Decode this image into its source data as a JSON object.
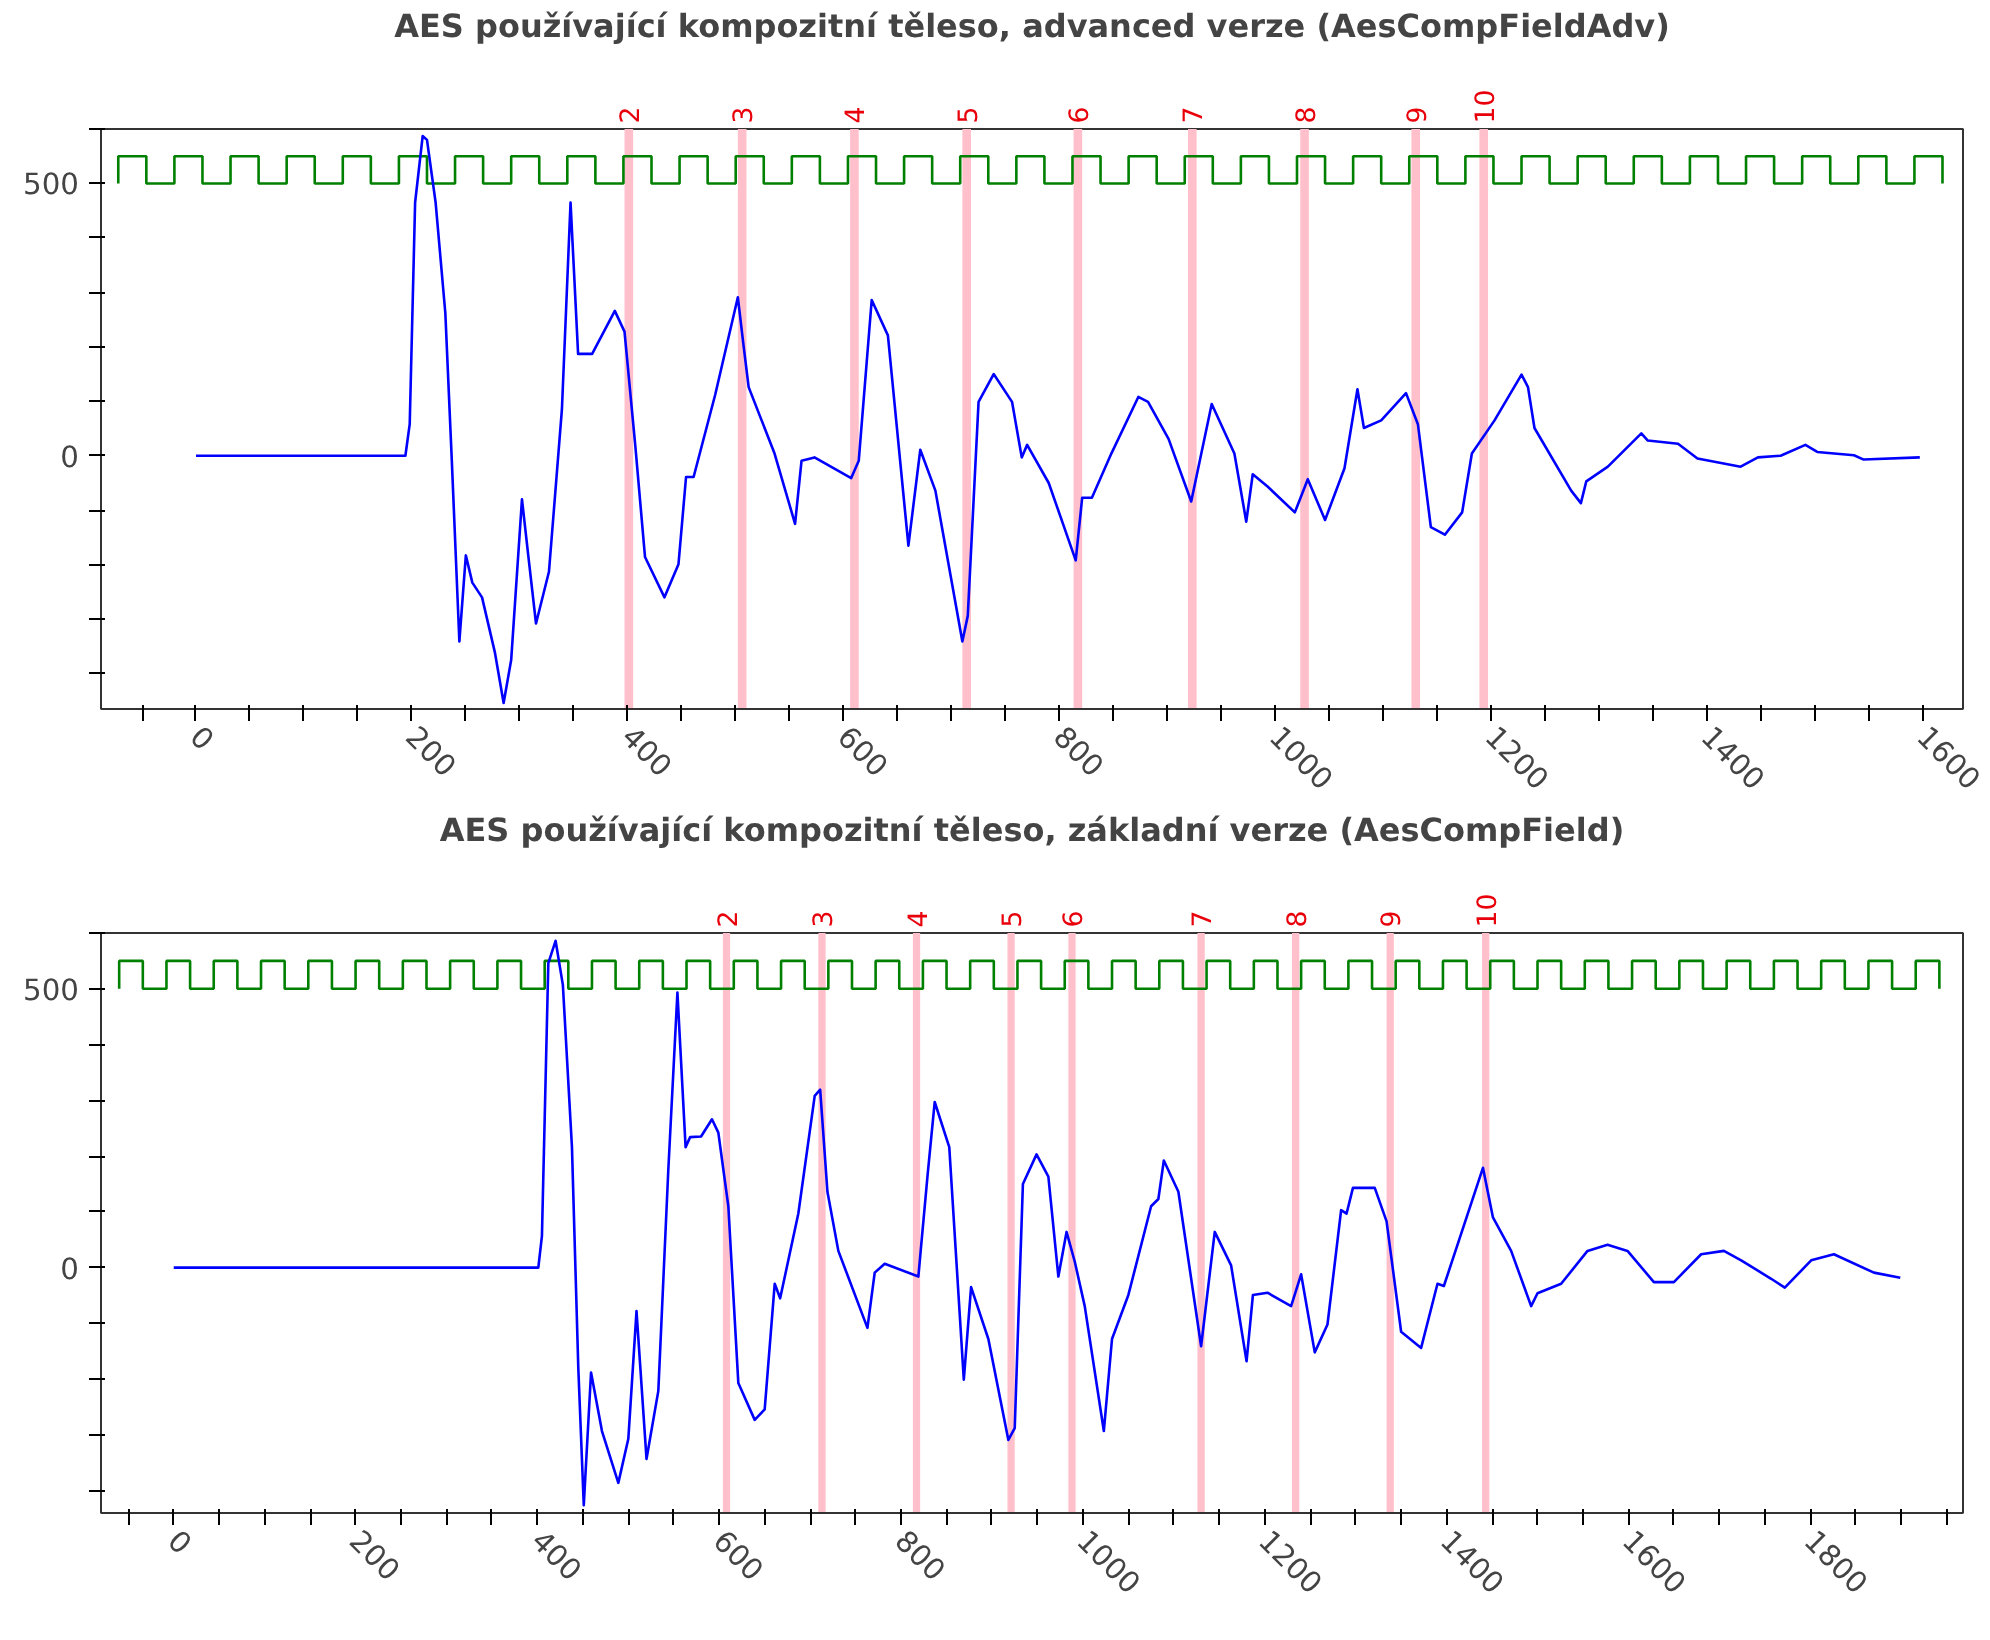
{
  "chart_data": [
    {
      "type": "line",
      "title": "AES používající kompozitní těleso, advanced verze (AesCompFieldAdv)",
      "xlim": [
        -88,
        1637
      ],
      "ylim": [
        -465,
        600
      ],
      "xticks": [
        {
          "value": -50,
          "label": null
        },
        0,
        {
          "value": 50,
          "label": null
        },
        {
          "value": 100,
          "label": null
        },
        {
          "value": 150,
          "label": null
        },
        200,
        {
          "value": 250,
          "label": null
        },
        {
          "value": 300,
          "label": null
        },
        {
          "value": 350,
          "label": null
        },
        400,
        {
          "value": 450,
          "label": null
        },
        {
          "value": 500,
          "label": null
        },
        {
          "value": 550,
          "label": null
        },
        600,
        {
          "value": 650,
          "label": null
        },
        {
          "value": 700,
          "label": null
        },
        {
          "value": 750,
          "label": null
        },
        800,
        {
          "value": 850,
          "label": null
        },
        {
          "value": 900,
          "label": null
        },
        {
          "value": 950,
          "label": null
        },
        1000,
        {
          "value": 1050,
          "label": null
        },
        {
          "value": 1100,
          "label": null
        },
        {
          "value": 1150,
          "label": null
        },
        1200,
        {
          "value": 1250,
          "label": null
        },
        {
          "value": 1300,
          "label": null
        },
        {
          "value": 1350,
          "label": null
        },
        1400,
        {
          "value": 1450,
          "label": null
        },
        {
          "value": 1500,
          "label": null
        },
        {
          "value": 1550,
          "label": null
        },
        1600
      ],
      "yticks": [
        {
          "value": -400,
          "label": null
        },
        {
          "value": -300,
          "label": null
        },
        {
          "value": -200,
          "label": null
        },
        {
          "value": -100,
          "label": null
        },
        0,
        {
          "value": 100,
          "label": null
        },
        {
          "value": 200,
          "label": null
        },
        {
          "value": 300,
          "label": null
        },
        {
          "value": 400,
          "label": null
        },
        500,
        {
          "value": 600,
          "label": null
        }
      ],
      "bands": [
        {
          "axis": "x",
          "from": 397,
          "to": 405,
          "label": "2",
          "color": "#ffc0cb"
        },
        {
          "axis": "x",
          "from": 502,
          "to": 510,
          "label": "3",
          "color": "#ffc0cb"
        },
        {
          "axis": "x",
          "from": 606,
          "to": 614,
          "label": "4",
          "color": "#ffc0cb"
        },
        {
          "axis": "x",
          "from": 710,
          "to": 718,
          "label": "5",
          "color": "#ffc0cb"
        },
        {
          "axis": "x",
          "from": 813,
          "to": 821,
          "label": "6",
          "color": "#ffc0cb"
        },
        {
          "axis": "x",
          "from": 919,
          "to": 927,
          "label": "7",
          "color": "#ffc0cb"
        },
        {
          "axis": "x",
          "from": 1023,
          "to": 1031,
          "label": "8",
          "color": "#ffc0cb"
        },
        {
          "axis": "x",
          "from": 1126,
          "to": 1134,
          "label": "9",
          "color": "#ffc0cb"
        },
        {
          "axis": "x",
          "from": 1189,
          "to": 1197,
          "label": "10",
          "color": "#ffc0cb"
        }
      ],
      "series": [
        {
          "type": "step",
          "color": "#008000",
          "x": [
            -72,
            -72,
            -46,
            -20,
            6,
            32,
            58,
            84,
            110,
            136,
            162,
            188,
            214,
            240,
            266,
            292,
            318,
            344,
            370,
            396,
            422,
            448,
            474,
            500,
            526,
            552,
            578,
            604,
            630,
            656,
            682,
            708,
            734,
            760,
            786,
            812,
            838,
            864,
            890,
            916,
            942,
            968,
            994,
            1020,
            1046,
            1072,
            1098,
            1124,
            1150,
            1176,
            1202,
            1228,
            1254,
            1280,
            1306,
            1332,
            1358,
            1384,
            1410,
            1436,
            1462,
            1488,
            1514,
            1540,
            1566,
            1592,
            1618
          ],
          "values": [
            500,
            550,
            500,
            550,
            500,
            550,
            500,
            550,
            500,
            550,
            500,
            550,
            500,
            550,
            500,
            550,
            500,
            550,
            500,
            550,
            500,
            550,
            500,
            550,
            500,
            550,
            500,
            550,
            500,
            550,
            500,
            550,
            500,
            550,
            500,
            550,
            500,
            550,
            500,
            550,
            500,
            550,
            500,
            550,
            500,
            550,
            500,
            550,
            500,
            550,
            500,
            550,
            500,
            550,
            500,
            550,
            500,
            550,
            500,
            550,
            500,
            550,
            500,
            550,
            500,
            550,
            500
          ]
        },
        {
          "color": "#0000ff",
          "x": [
            0,
            194,
            198,
            203,
            210,
            214,
            222,
            231,
            237,
            244,
            250,
            256,
            265,
            277,
            285,
            292,
            302,
            308,
            315,
            327,
            339,
            347,
            354,
            367,
            388,
            397,
            407,
            416,
            434,
            447,
            454,
            461,
            481,
            502,
            507,
            512,
            536,
            555,
            561,
            573,
            607,
            614,
            626,
            641,
            660,
            671,
            685,
            710,
            715,
            725,
            739,
            756,
            765,
            770,
            790,
            815,
            821,
            830,
            848,
            873,
            882,
            901,
            922,
            941,
            962,
            973,
            979,
            993,
            1018,
            1030,
            1046,
            1064,
            1076,
            1082,
            1098,
            1121,
            1132,
            1144,
            1157,
            1173,
            1182,
            1203,
            1228,
            1234,
            1240,
            1274,
            1283,
            1288,
            1308,
            1339,
            1345,
            1373,
            1391,
            1431,
            1447,
            1468,
            1491,
            1502,
            1536,
            1545,
            1597
          ],
          "values": [
            0,
            0,
            58,
            465,
            587,
            580,
            465,
            262,
            -9,
            -341,
            -183,
            -233,
            -260,
            -362,
            -454,
            -375,
            -80,
            -186,
            -308,
            -213,
            85,
            465,
            187,
            187,
            266,
            228,
            18,
            -186,
            -260,
            -199,
            -39,
            -39,
            112,
            291,
            207,
            126,
            4,
            -125,
            -9,
            -3,
            -41,
            -9,
            286,
            221,
            -165,
            11,
            -64,
            -341,
            -294,
            99,
            150,
            99,
            -3,
            20,
            -50,
            -192,
            -77,
            -77,
            4,
            108,
            99,
            31,
            -84,
            95,
            4,
            -121,
            -34,
            -57,
            -104,
            -43,
            -118,
            -23,
            122,
            51,
            65,
            115,
            58,
            -131,
            -145,
            -104,
            4,
            65,
            149,
            126,
            51,
            -64,
            -87,
            -47,
            -20,
            41,
            28,
            22,
            -5,
            -20,
            -3,
            0,
            20,
            7,
            1,
            -7,
            -3
          ]
        }
      ]
    },
    {
      "type": "line",
      "title": "AES používající kompozitní těleso, základní verze (AesCompField)",
      "xlim": [
        -80,
        1968
      ],
      "ylim": [
        -440,
        600
      ],
      "xticks": [
        {
          "value": -50,
          "label": null
        },
        0,
        {
          "value": 50,
          "label": null
        },
        {
          "value": 100,
          "label": null
        },
        {
          "value": 150,
          "label": null
        },
        200,
        {
          "value": 250,
          "label": null
        },
        {
          "value": 300,
          "label": null
        },
        {
          "value": 350,
          "label": null
        },
        400,
        {
          "value": 450,
          "label": null
        },
        {
          "value": 500,
          "label": null
        },
        {
          "value": 550,
          "label": null
        },
        600,
        {
          "value": 650,
          "label": null
        },
        {
          "value": 700,
          "label": null
        },
        {
          "value": 750,
          "label": null
        },
        800,
        {
          "value": 850,
          "label": null
        },
        {
          "value": 900,
          "label": null
        },
        {
          "value": 950,
          "label": null
        },
        1000,
        {
          "value": 1050,
          "label": null
        },
        {
          "value": 1100,
          "label": null
        },
        {
          "value": 1150,
          "label": null
        },
        1200,
        {
          "value": 1250,
          "label": null
        },
        {
          "value": 1300,
          "label": null
        },
        {
          "value": 1350,
          "label": null
        },
        1400,
        {
          "value": 1450,
          "label": null
        },
        {
          "value": 1500,
          "label": null
        },
        {
          "value": 1550,
          "label": null
        },
        1600,
        {
          "value": 1650,
          "label": null
        },
        {
          "value": 1700,
          "label": null
        },
        {
          "value": 1750,
          "label": null
        },
        1800,
        {
          "value": 1850,
          "label": null
        },
        {
          "value": 1900,
          "label": null
        },
        {
          "value": 1950,
          "label": null
        }
      ],
      "yticks": [
        {
          "value": -400,
          "label": null
        },
        {
          "value": -300,
          "label": null
        },
        {
          "value": -200,
          "label": null
        },
        {
          "value": -100,
          "label": null
        },
        0,
        {
          "value": 100,
          "label": null
        },
        {
          "value": 200,
          "label": null
        },
        {
          "value": 300,
          "label": null
        },
        {
          "value": 400,
          "label": null
        },
        500,
        {
          "value": 600,
          "label": null
        }
      ],
      "bands": [
        {
          "axis": "x",
          "from": 604,
          "to": 612,
          "label": "2",
          "color": "#ffc0cb"
        },
        {
          "axis": "x",
          "from": 709,
          "to": 717,
          "label": "3",
          "color": "#ffc0cb"
        },
        {
          "axis": "x",
          "from": 813,
          "to": 821,
          "label": "4",
          "color": "#ffc0cb"
        },
        {
          "axis": "x",
          "from": 917,
          "to": 925,
          "label": "5",
          "color": "#ffc0cb"
        },
        {
          "axis": "x",
          "from": 984,
          "to": 992,
          "label": "6",
          "color": "#ffc0cb"
        },
        {
          "axis": "x",
          "from": 1126,
          "to": 1134,
          "label": "7",
          "color": "#ffc0cb"
        },
        {
          "axis": "x",
          "from": 1230,
          "to": 1238,
          "label": "8",
          "color": "#ffc0cb"
        },
        {
          "axis": "x",
          "from": 1334,
          "to": 1342,
          "label": "9",
          "color": "#ffc0cb"
        },
        {
          "axis": "x",
          "from": 1439,
          "to": 1447,
          "label": "10",
          "color": "#ffc0cb"
        }
      ],
      "series": [
        {
          "type": "step",
          "color": "#008000",
          "x": [
            -60,
            -60,
            -34,
            -8,
            18,
            44,
            70,
            96,
            122,
            148,
            174,
            200,
            226,
            252,
            278,
            304,
            330,
            356,
            382,
            408,
            434,
            460,
            486,
            512,
            538,
            564,
            590,
            616,
            642,
            668,
            694,
            720,
            746,
            772,
            798,
            824,
            850,
            876,
            902,
            928,
            954,
            980,
            1006,
            1032,
            1058,
            1084,
            1110,
            1136,
            1162,
            1188,
            1214,
            1240,
            1266,
            1292,
            1318,
            1344,
            1370,
            1396,
            1422,
            1448,
            1474,
            1500,
            1526,
            1552,
            1578,
            1604,
            1630,
            1656,
            1682,
            1708,
            1734,
            1760,
            1786,
            1812,
            1838,
            1864,
            1890,
            1916,
            1942
          ],
          "values": [
            500,
            550,
            500,
            550,
            500,
            550,
            500,
            550,
            500,
            550,
            500,
            550,
            500,
            550,
            500,
            550,
            500,
            550,
            500,
            550,
            500,
            550,
            500,
            550,
            500,
            550,
            500,
            550,
            500,
            550,
            500,
            550,
            500,
            550,
            500,
            550,
            500,
            550,
            500,
            550,
            500,
            550,
            500,
            550,
            500,
            550,
            500,
            550,
            500,
            550,
            500,
            550,
            500,
            550,
            500,
            550,
            500,
            550,
            500,
            550,
            500,
            550,
            500,
            550,
            500,
            550,
            500,
            550,
            500,
            550,
            500,
            550,
            500,
            550,
            500,
            550,
            500,
            550,
            500
          ]
        },
        {
          "color": "#0000ff",
          "x": [
            0,
            401,
            405,
            412,
            420,
            428,
            438,
            445,
            451,
            459,
            471,
            489,
            500,
            509,
            520,
            533,
            544,
            554,
            563,
            568,
            580,
            592,
            599,
            610,
            621,
            639,
            650,
            661,
            667,
            687,
            705,
            711,
            719,
            731,
            763,
            771,
            782,
            819,
            829,
            837,
            853,
            869,
            877,
            896,
            918,
            925,
            934,
            949,
            962,
            973,
            982,
            991,
            1002,
            1023,
            1032,
            1050,
            1075,
            1083,
            1089,
            1105,
            1130,
            1145,
            1163,
            1180,
            1187,
            1203,
            1229,
            1240,
            1255,
            1269,
            1284,
            1290,
            1297,
            1321,
            1334,
            1350,
            1372,
            1390,
            1397,
            1440,
            1451,
            1471,
            1493,
            1500,
            1526,
            1555,
            1577,
            1599,
            1628,
            1650,
            1680,
            1705,
            1724,
            1757,
            1772,
            1801,
            1826,
            1870,
            1899
          ],
          "values": [
            0,
            0,
            57,
            546,
            586,
            507,
            216,
            -181,
            -426,
            -188,
            -293,
            -386,
            -307,
            -78,
            -343,
            -221,
            176,
            493,
            216,
            234,
            235,
            266,
            242,
            110,
            -207,
            -273,
            -254,
            -29,
            -55,
            97,
            308,
            319,
            136,
            30,
            -108,
            -9,
            7,
            -16,
            163,
            297,
            216,
            -201,
            -35,
            -128,
            -309,
            -288,
            150,
            203,
            163,
            -16,
            64,
            11,
            -69,
            -293,
            -128,
            -49,
            110,
            123,
            192,
            136,
            -141,
            64,
            4,
            -168,
            -49,
            -45,
            -69,
            -12,
            -152,
            -102,
            103,
            97,
            143,
            143,
            83,
            -115,
            -144,
            -29,
            -33,
            179,
            90,
            30,
            -69,
            -46,
            -29,
            30,
            41,
            30,
            -26,
            -26,
            24,
            30,
            13,
            -20,
            -36,
            13,
            24,
            -9,
            -18
          ]
        }
      ]
    }
  ]
}
